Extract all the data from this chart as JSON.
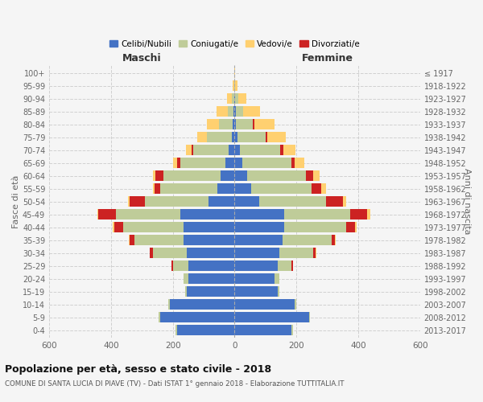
{
  "age_groups": [
    "0-4",
    "5-9",
    "10-14",
    "15-19",
    "20-24",
    "25-29",
    "30-34",
    "35-39",
    "40-44",
    "45-49",
    "50-54",
    "55-59",
    "60-64",
    "65-69",
    "70-74",
    "75-79",
    "80-84",
    "85-89",
    "90-94",
    "95-99",
    "100+"
  ],
  "birth_years": [
    "2013-2017",
    "2008-2012",
    "2003-2007",
    "1998-2002",
    "1993-1997",
    "1988-1992",
    "1983-1987",
    "1978-1982",
    "1973-1977",
    "1968-1972",
    "1963-1967",
    "1958-1962",
    "1953-1957",
    "1948-1952",
    "1943-1947",
    "1938-1942",
    "1933-1937",
    "1928-1932",
    "1923-1927",
    "1918-1922",
    "≤ 1917"
  ],
  "colors": {
    "celibe": "#4472C4",
    "coniugato": "#BFCC99",
    "vedovo": "#FFD070",
    "divorziato": "#CC2222"
  },
  "maschi": {
    "celibe": [
      185,
      240,
      210,
      155,
      150,
      150,
      155,
      165,
      165,
      175,
      85,
      55,
      45,
      30,
      18,
      10,
      5,
      3,
      2,
      0,
      0
    ],
    "coniugato": [
      5,
      5,
      5,
      5,
      15,
      50,
      110,
      160,
      195,
      210,
      205,
      185,
      185,
      145,
      115,
      80,
      45,
      20,
      8,
      2,
      0
    ],
    "vedovo": [
      2,
      0,
      0,
      0,
      0,
      0,
      0,
      2,
      3,
      5,
      5,
      5,
      10,
      15,
      20,
      30,
      40,
      35,
      15,
      3,
      0
    ],
    "divorziato": [
      0,
      0,
      0,
      0,
      0,
      5,
      10,
      15,
      30,
      55,
      50,
      20,
      25,
      10,
      5,
      0,
      0,
      0,
      0,
      0,
      0
    ]
  },
  "femmine": {
    "celibe": [
      185,
      240,
      195,
      140,
      130,
      140,
      145,
      155,
      160,
      160,
      80,
      55,
      40,
      25,
      18,
      10,
      5,
      3,
      2,
      0,
      0
    ],
    "coniugato": [
      5,
      5,
      5,
      5,
      15,
      45,
      110,
      160,
      200,
      215,
      215,
      195,
      190,
      160,
      130,
      90,
      55,
      25,
      10,
      2,
      0
    ],
    "vedovo": [
      0,
      0,
      0,
      0,
      0,
      0,
      2,
      3,
      5,
      8,
      10,
      15,
      20,
      30,
      40,
      60,
      65,
      55,
      25,
      8,
      1
    ],
    "divorziato": [
      0,
      0,
      0,
      0,
      0,
      5,
      8,
      10,
      30,
      55,
      55,
      30,
      25,
      10,
      10,
      5,
      5,
      0,
      0,
      0,
      0
    ]
  },
  "title": "Popolazione per età, sesso e stato civile - 2018",
  "subtitle": "COMUNE DI SANTA LUCIA DI PIAVE (TV) - Dati ISTAT 1° gennaio 2018 - Elaborazione TUTTITALIA.IT",
  "xlabel_left": "Maschi",
  "xlabel_right": "Femmine",
  "ylabel_left": "Fasce di età",
  "ylabel_right": "Anni di nascita",
  "xlim": 600,
  "background_color": "#f5f5f5",
  "grid_color": "#cccccc",
  "legend_labels": [
    "Celibi/Nubili",
    "Coniugati/e",
    "Vedovi/e",
    "Divorziati/e"
  ]
}
